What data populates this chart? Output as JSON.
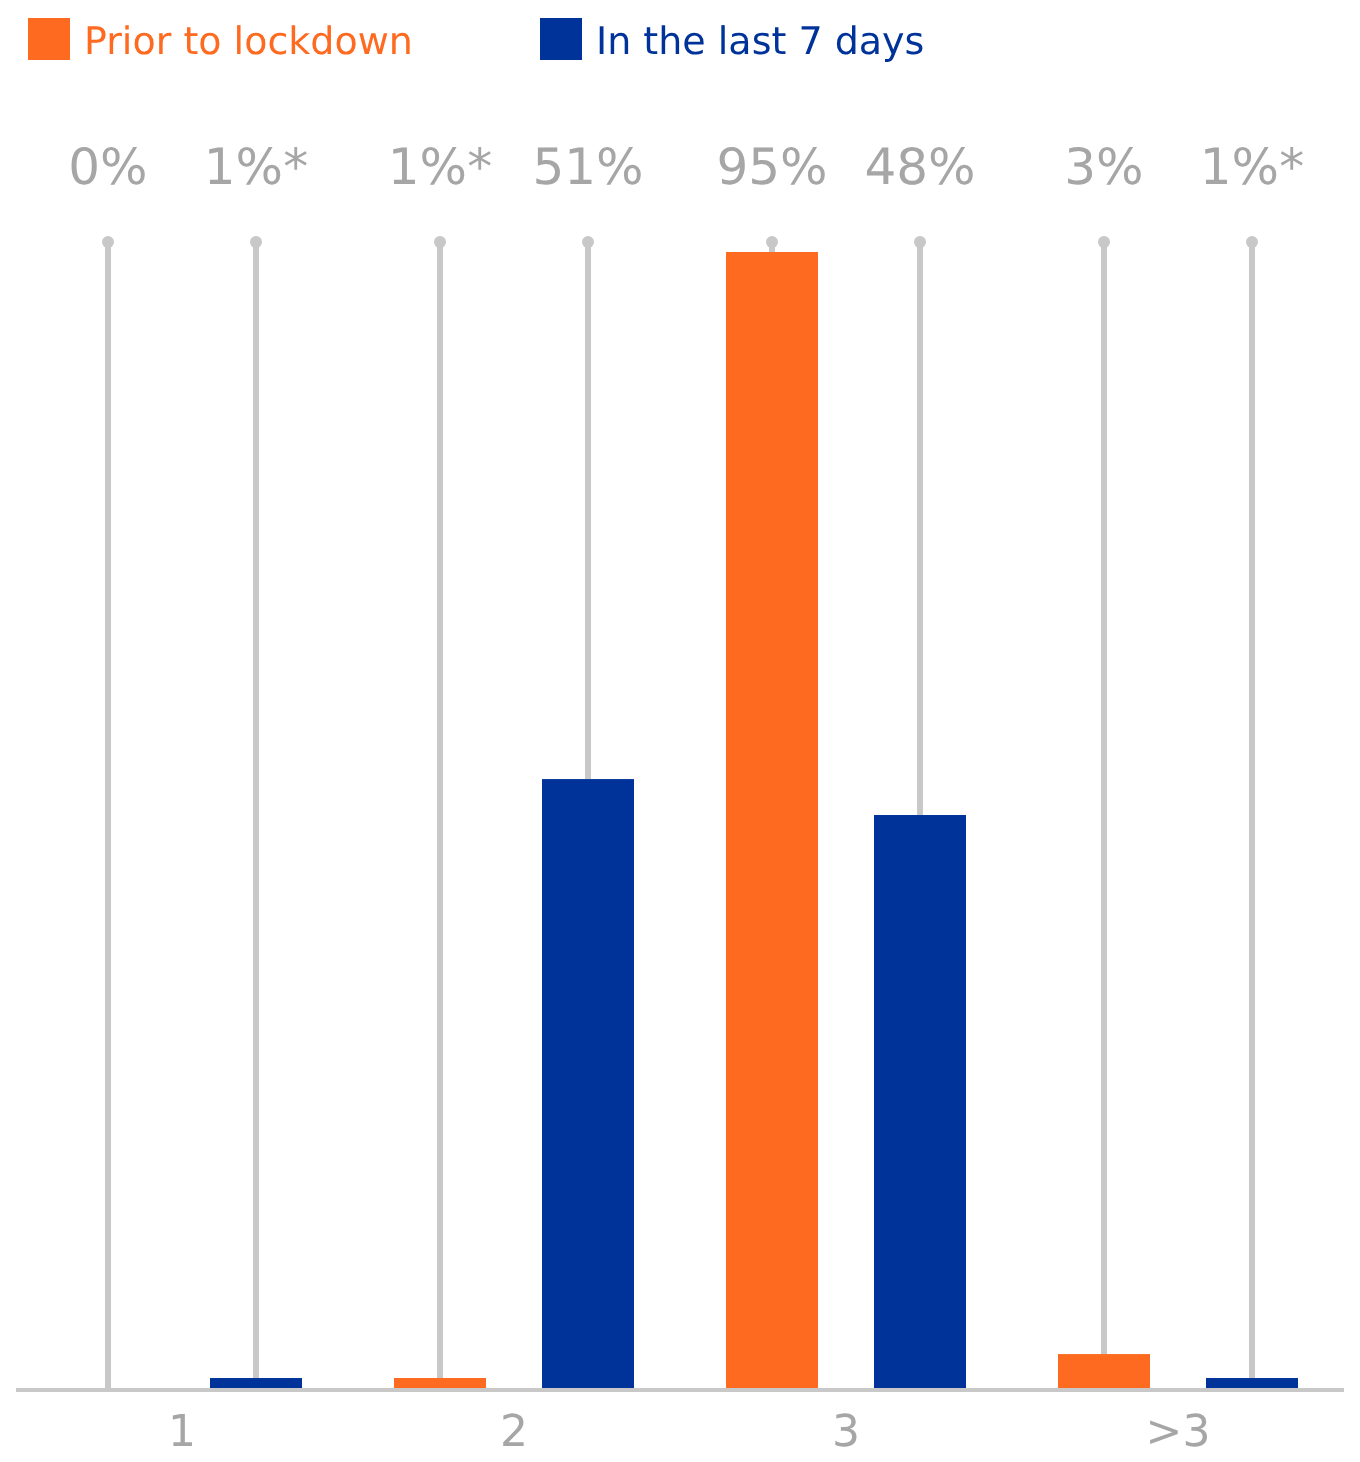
{
  "chart_data": {
    "type": "bar",
    "categories": [
      "1",
      "2",
      "3",
      ">3"
    ],
    "series": [
      {
        "name": "Prior to lockdown",
        "color": "#fe6a1f",
        "values": [
          0,
          1,
          95,
          3
        ],
        "value_labels": [
          "0%",
          "1%*",
          "95%",
          "3%"
        ]
      },
      {
        "name": "In the last 7 days",
        "color": "#00339a",
        "values": [
          1,
          51,
          48,
          1
        ],
        "value_labels": [
          "1%*",
          "51%",
          "48%",
          "1%*"
        ]
      }
    ],
    "legend": "top left"
  }
}
